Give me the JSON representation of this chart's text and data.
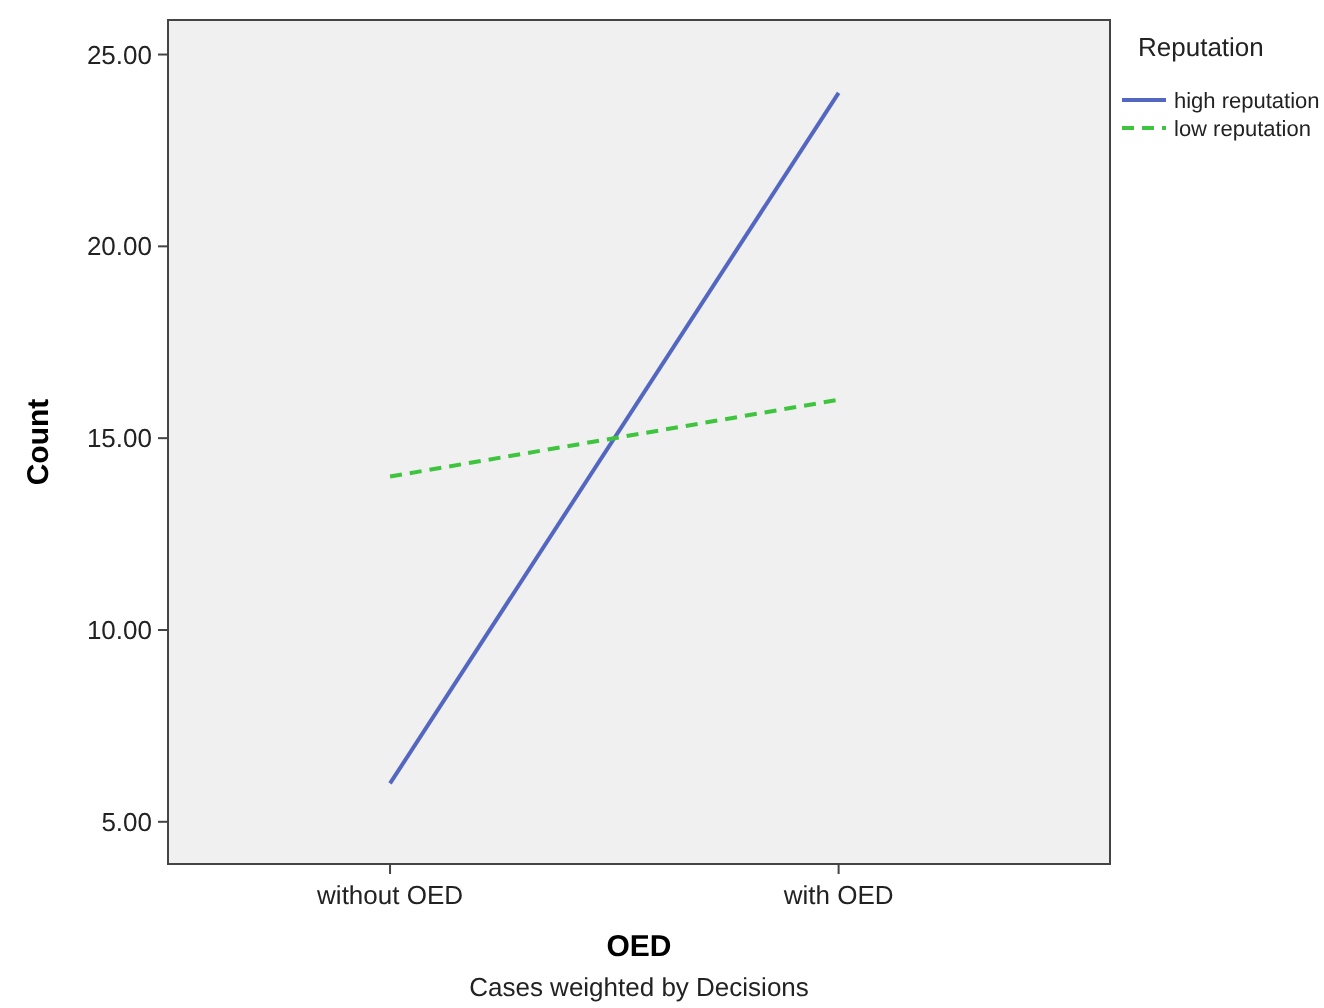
{
  "chart_data": {
    "type": "line",
    "xlabel": "OED",
    "ylabel": "Count",
    "legend_title": "Reputation",
    "legend": "right",
    "grid": false,
    "marker": "none",
    "categories": [
      "without OED",
      "with OED"
    ],
    "ylim": [
      3.9,
      25.9
    ],
    "yticks": [
      {
        "value": 5,
        "label": "5.00"
      },
      {
        "value": 10,
        "label": "10.00"
      },
      {
        "value": 15,
        "label": "15.00"
      },
      {
        "value": 20,
        "label": "20.00"
      },
      {
        "value": 25,
        "label": "25.00"
      }
    ],
    "series": [
      {
        "name": "high reputation",
        "color": "#5467c0",
        "values": [
          6,
          24
        ],
        "line_style": "solid"
      },
      {
        "name": "low reputation",
        "color": "#3ec43e",
        "values": [
          14,
          16
        ],
        "line_style": "dashed"
      }
    ],
    "annotations": [
      "Cases weighted by Decisions"
    ]
  }
}
